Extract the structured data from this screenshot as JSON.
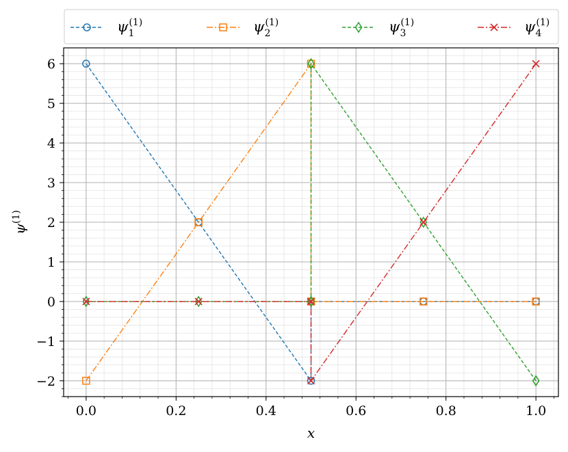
{
  "chart_data": {
    "type": "line",
    "xlabel": "x",
    "ylabel": "ψ",
    "ylabel_sup": "(1)",
    "xlim": [
      -0.05,
      1.05
    ],
    "ylim": [
      -2.4,
      6.4
    ],
    "xticks": [
      0.0,
      0.2,
      0.4,
      0.6,
      0.8,
      1.0
    ],
    "xtick_labels": [
      "0.0",
      "0.2",
      "0.4",
      "0.6",
      "0.8",
      "1.0"
    ],
    "yticks": [
      -2,
      -1,
      0,
      1,
      2,
      3,
      4,
      5,
      6
    ],
    "ytick_labels": [
      "−2",
      "−1",
      "0",
      "1",
      "2",
      "3",
      "4",
      "5",
      "6"
    ],
    "grid": true,
    "minor_grid": true,
    "legend_position": "top",
    "series": [
      {
        "name": "ψ",
        "name_sub": "1",
        "name_sup": "(1)",
        "color": "#1f77b4",
        "marker": "circle",
        "linestyle": "dashed",
        "x": [
          0.0,
          0.25,
          0.5,
          0.5,
          0.75,
          1.0
        ],
        "y": [
          6,
          2,
          -2,
          0,
          0,
          0
        ]
      },
      {
        "name": "ψ",
        "name_sub": "2",
        "name_sup": "(1)",
        "color": "#ff7f0e",
        "marker": "square",
        "linestyle": "dashdot",
        "x": [
          0.0,
          0.25,
          0.5,
          0.5,
          0.75,
          1.0
        ],
        "y": [
          -2,
          2,
          6,
          0,
          0,
          0
        ]
      },
      {
        "name": "ψ",
        "name_sub": "3",
        "name_sup": "(1)",
        "color": "#2ca02c",
        "marker": "diamond",
        "linestyle": "dashed",
        "x": [
          0.0,
          0.25,
          0.5,
          0.5,
          0.75,
          1.0
        ],
        "y": [
          0,
          0,
          0,
          6,
          2,
          -2
        ]
      },
      {
        "name": "ψ",
        "name_sub": "4",
        "name_sup": "(1)",
        "color": "#d62728",
        "marker": "x",
        "linestyle": "dashdot",
        "x": [
          0.0,
          0.25,
          0.5,
          0.5,
          0.75,
          1.0
        ],
        "y": [
          0,
          0,
          0,
          -2,
          2,
          6
        ]
      }
    ]
  }
}
